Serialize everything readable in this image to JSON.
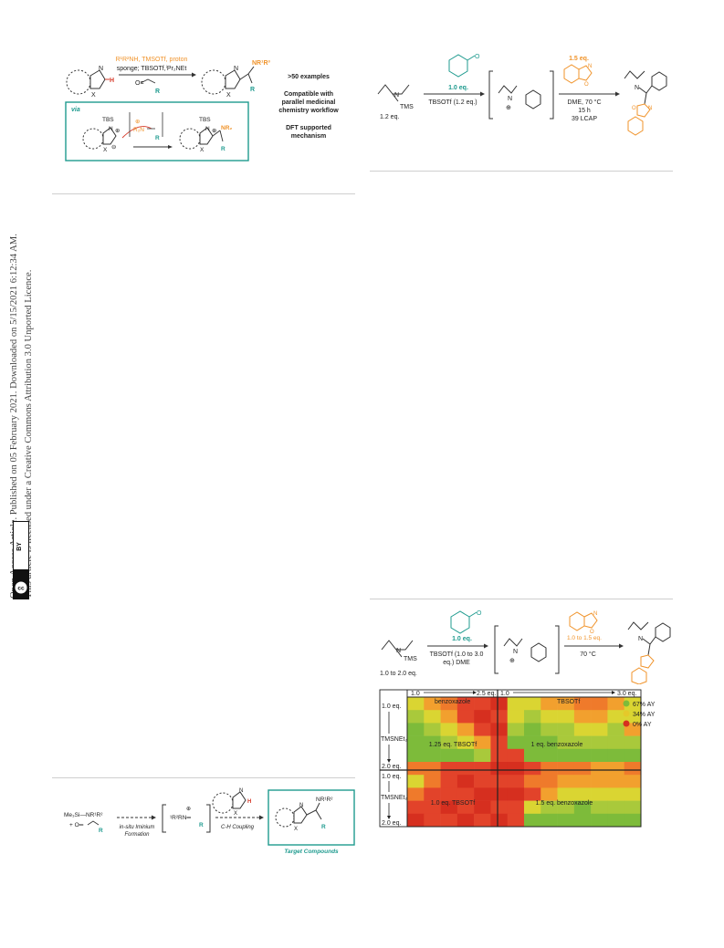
{
  "sidebar": {
    "line1": "Open Access Article. Published on 05 February 2021. Downloaded on 5/15/2021 6:12:34 AM.",
    "line2": "This article is licensed under a Creative Commons Attribution 3.0 Unported Licence.",
    "badge_cc": "cc",
    "badge_by": "BY"
  },
  "scheme1": {
    "reagent_top": "R¹R²NH, TMSOTf, proton",
    "reagent_mid": "sponge; TBSOTf,ⁱPr₂NEt",
    "aldehyde_r": "R",
    "product_nr": "NR¹R³",
    "product_r": "R",
    "via": "via",
    "tbs1": "TBS",
    "tbs2": "TBS",
    "nr2": "NR₂",
    "r_inter": "R",
    "r_prod2": "R",
    "x": "X",
    "n": "N",
    "h": "H",
    "claims": [
      ">50 examples",
      "Compatible with",
      "parallel medicinal",
      "chemistry workflow",
      "DFT supported",
      "mechanism"
    ]
  },
  "scheme2": {
    "amine_eq": "1.2 eq.",
    "tms": "TMS",
    "aldehyde_eq": "1.0 eq.",
    "arrow1_reagent": "TBSOTf (1.2 eq.)",
    "heteroarene_eq": "1.5 eq.",
    "conditions": [
      "DME, 70 °C",
      "15 h",
      "39 LCAP"
    ]
  },
  "scheme3": {
    "amine_eq": "1.0 to 2.0 eq.",
    "tms": "TMS",
    "aldehyde_eq": "1.0 eq.",
    "arrow1_reagent_a": "TBSOTf (1.0 to 3.0",
    "arrow1_reagent_b": "eq.) DME",
    "heteroarene_eq": "1.0 to 1.5 eq.",
    "conditions": "70 °C"
  },
  "heatmap": {
    "top_left_start": "1.0",
    "top_left_end": "2.5 eq.",
    "top_left_label": "benzoxazole",
    "top_right_start": "1.0",
    "top_right_end": "3.0 eq.",
    "top_right_label": "TBSOTf",
    "row_start": "1.0 eq.",
    "row_end": "2.0 eq.",
    "row_label": "TMSNEt₂",
    "quad_labels": [
      "1.25 eq. TBSOTf",
      "1 eq. benzoxazole",
      "1.0 eq. TBSOTf",
      "1.5 eq. benzoxazole"
    ],
    "legend": [
      {
        "label": "67% AY",
        "color": "#7dbb3a"
      },
      {
        "label": "34% AY",
        "color": "#e5c92a"
      },
      {
        "label": "0% AY",
        "color": "#d62f1f"
      }
    ],
    "colors": {
      "g": "#7dbb3a",
      "lg": "#a9c93b",
      "y": "#dad532",
      "o": "#f2a02e",
      "do": "#ef7a2b",
      "r": "#e2432a",
      "dr": "#d62f1f"
    },
    "grid": [
      [
        "y",
        "o",
        "do",
        "r",
        "r",
        "dr",
        "y",
        "y",
        "o",
        "o",
        "do",
        "do",
        "o",
        "y"
      ],
      [
        "lg",
        "y",
        "o",
        "r",
        "dr",
        "r",
        "y",
        "lg",
        "y",
        "y",
        "o",
        "o",
        "y",
        "y"
      ],
      [
        "g",
        "lg",
        "y",
        "o",
        "r",
        "dr",
        "lg",
        "g",
        "lg",
        "lg",
        "y",
        "y",
        "lg",
        "o"
      ],
      [
        "g",
        "g",
        "lg",
        "y",
        "o",
        "r",
        "g",
        "g",
        "g",
        "lg",
        "lg",
        "lg",
        "lg",
        "lg"
      ],
      [
        "g",
        "g",
        "g",
        "g",
        "lg",
        "r",
        "r",
        "g",
        "g",
        "g",
        "g",
        "g",
        "g",
        "g"
      ],
      [
        "do",
        "do",
        "r",
        "r",
        "r",
        "dr",
        "dr",
        "r",
        "do",
        "do",
        "do",
        "o",
        "o",
        "do"
      ],
      [
        "y",
        "do",
        "r",
        "dr",
        "r",
        "r",
        "r",
        "do",
        "do",
        "o",
        "o",
        "o",
        "o",
        "o"
      ],
      [
        "do",
        "r",
        "r",
        "r",
        "dr",
        "dr",
        "dr",
        "r",
        "o",
        "y",
        "y",
        "y",
        "y",
        "y"
      ],
      [
        "r",
        "r",
        "dr",
        "r",
        "dr",
        "r",
        "r",
        "y",
        "lg",
        "lg",
        "g",
        "lg",
        "lg",
        "lg"
      ],
      [
        "dr",
        "r",
        "r",
        "dr",
        "r",
        "dr",
        "r",
        "g",
        "g",
        "g",
        "g",
        "g",
        "g",
        "g"
      ]
    ]
  },
  "scheme4": {
    "reagent1": "Me₃Si—NR¹R²",
    "reagent2": "+  O═",
    "r": "R",
    "step1_a": "in-situ  Iminium",
    "step1_b": "Formation",
    "iminium": "¹R²RN═",
    "step2": "C-H Coupling",
    "product_nr": "NR¹R²",
    "product_r": "R",
    "target": "Target Compounds"
  },
  "colors": {
    "orange": "#f0932a",
    "teal": "#1f9b8f",
    "red": "#d63a2a",
    "rule": "#cfcfcf"
  }
}
